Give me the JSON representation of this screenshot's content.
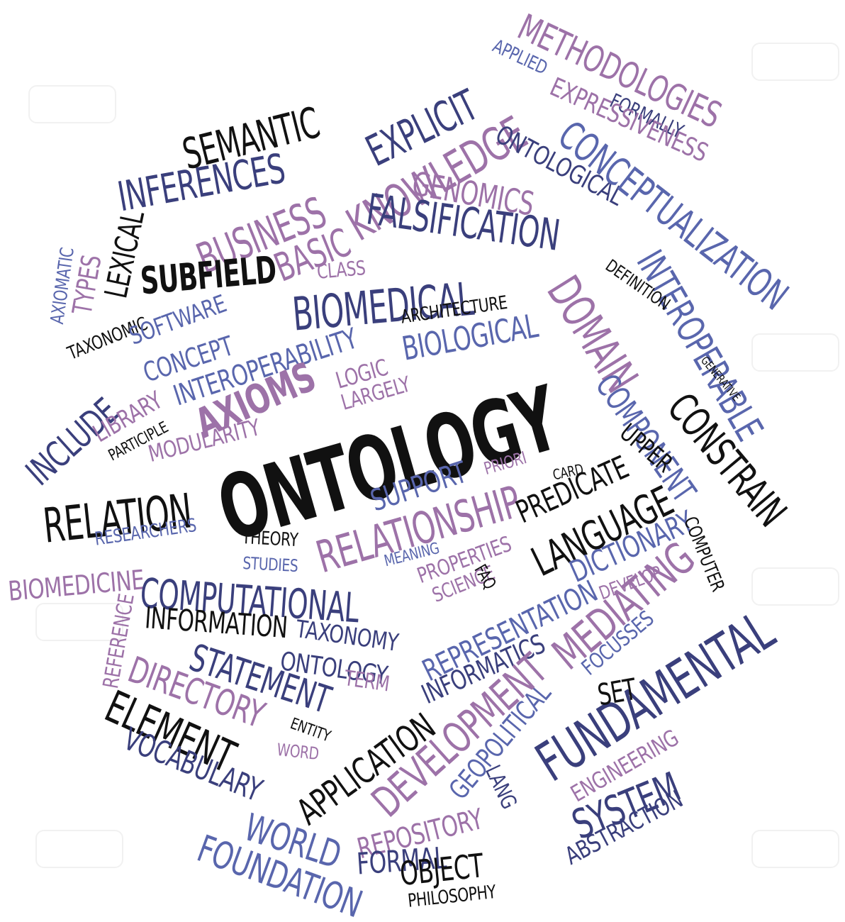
{
  "colors": {
    "black": "#111111",
    "navy": "#3a3f7c",
    "blue": "#5966ad",
    "purple": "#9d72a8",
    "background": "#ffffff"
  },
  "words": [
    "METHODOLOGIES",
    "APPLIED",
    "FORMALLY",
    "EXPRESSIVENESS",
    "SEMANTIC",
    "EXPLICIT",
    "INFERENCES",
    "KNOWLEDGE",
    "ONTOLOGICAL",
    "CONCEPTUALIZATION",
    "BUSINESS",
    "BASIC",
    "GENOMICS",
    "FALSIFICATION",
    "LEXICAL",
    "AXIOMATIC",
    "TYPES",
    "SUBFIELD",
    "CLASS",
    "BIOMEDICAL",
    "INTEROPERABLE",
    "DEFINITION",
    "DOMAIN",
    "TAXONOMIC",
    "SOFTWARE",
    "ARCHITECTURE",
    "BIOLOGICAL",
    "CONCEPT",
    "INTEROPERABILITY",
    "LOGIC",
    "LARGELY",
    "GENERATIVE",
    "COMPONENT",
    "CONSTRAIN",
    "INCLUDE",
    "LIBRARY",
    "PARTICIPLE",
    "AXIOMS",
    "MODULARITY",
    "ONTOLOGY",
    "UPPER",
    "PRIORI",
    "SUPPORT",
    "CARD",
    "RELATION",
    "RELATIONSHIP",
    "PREDICATE",
    "RESEARCHERS",
    "LANGUAGE",
    "THEORY",
    "DICTIONARY",
    "COMPUTER",
    "STUDIES",
    "MEANING",
    "PROPERTIES",
    "BIOMEDICINE",
    "SCIENCE",
    "FAQ",
    "DEVELOP",
    "COMPUTATIONAL",
    "REPRESENTATION",
    "INFORMATION",
    "TAXONOMY",
    "REFERENCE",
    "INFORMATICS",
    "MEDIATING",
    "FOCUSSES",
    "STATEMENT",
    "ONTOLOGY",
    "DIRECTORY",
    "TERM",
    "FUNDAMENTAL",
    "SET",
    "ELEMENT",
    "ENTITY",
    "GEOPOLITICAL",
    "DEVELOPMENT",
    "VOCABULARY",
    "WORD",
    "APPLICATION",
    "ENGINEERING",
    "LANG",
    "SYSTEM",
    "ABSTRACTION",
    "REPOSITORY",
    "WORLD",
    "FOUNDATION",
    "FORMAL",
    "OBJECT",
    "PHILOSOPHY"
  ]
}
